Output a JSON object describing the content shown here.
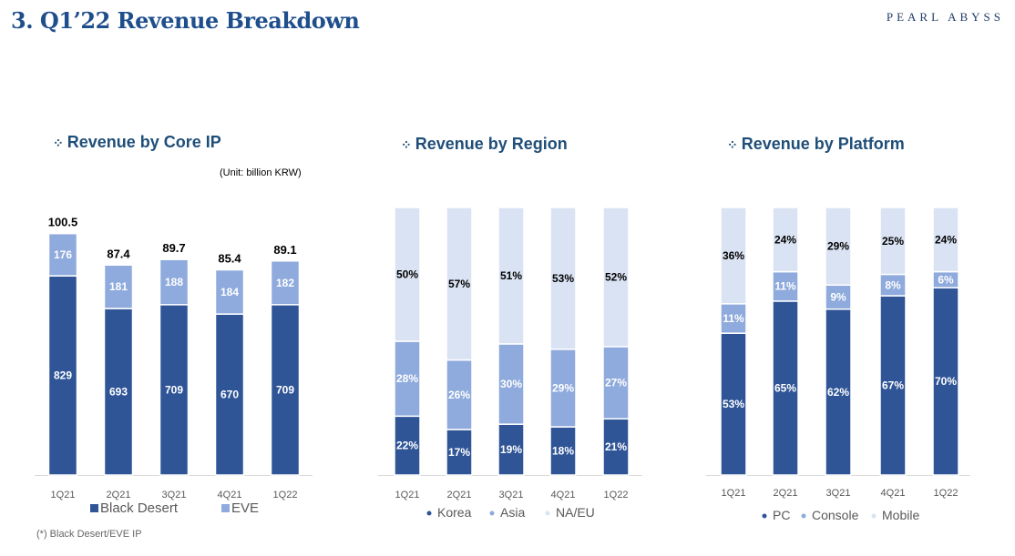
{
  "header": {
    "title": "3. Q1’22 Revenue Breakdown",
    "logo": "PEARL ABYSS"
  },
  "footnote": "(*) Black Desert/EVE IP",
  "colors": {
    "dark": "#2f5597",
    "mid": "#8faadc",
    "light": "#dae3f3"
  },
  "chart_data": [
    {
      "type": "bar",
      "stacked": true,
      "title": "Revenue by Core IP",
      "unit": "(Unit: billion KRW)",
      "categories": [
        "1Q21",
        "2Q21",
        "3Q21",
        "4Q21",
        "1Q22"
      ],
      "series": [
        {
          "name": "Black Desert",
          "values": [
            82.9,
            69.3,
            70.9,
            67.0,
            70.9
          ],
          "labels": [
            "829",
            "693",
            "709",
            "670",
            "709"
          ]
        },
        {
          "name": "EVE",
          "values": [
            17.6,
            18.1,
            18.8,
            18.4,
            18.2
          ],
          "labels": [
            "176",
            "181",
            "188",
            "184",
            "182"
          ]
        }
      ],
      "totals": [
        "100.5",
        "87.4",
        "89.7",
        "85.4",
        "89.1"
      ],
      "legend": "bottom"
    },
    {
      "type": "bar",
      "stacked": true,
      "percent": true,
      "title": "Revenue by Region",
      "categories": [
        "1Q21",
        "2Q21",
        "3Q21",
        "4Q21",
        "1Q22"
      ],
      "series": [
        {
          "name": "Korea",
          "values": [
            22,
            17,
            19,
            18,
            21
          ]
        },
        {
          "name": "Asia",
          "values": [
            28,
            26,
            30,
            29,
            27
          ]
        },
        {
          "name": "NA/EU",
          "values": [
            50,
            57,
            51,
            53,
            52
          ]
        }
      ],
      "legend": "bottom"
    },
    {
      "type": "bar",
      "stacked": true,
      "percent": true,
      "title": "Revenue by Platform",
      "categories": [
        "1Q21",
        "2Q21",
        "3Q21",
        "4Q21",
        "1Q22"
      ],
      "series": [
        {
          "name": "PC",
          "values": [
            53,
            65,
            62,
            67,
            70
          ]
        },
        {
          "name": "Console",
          "values": [
            11,
            11,
            9,
            8,
            6
          ]
        },
        {
          "name": "Mobile",
          "values": [
            36,
            24,
            29,
            25,
            24
          ]
        }
      ],
      "legend": "bottom"
    }
  ]
}
